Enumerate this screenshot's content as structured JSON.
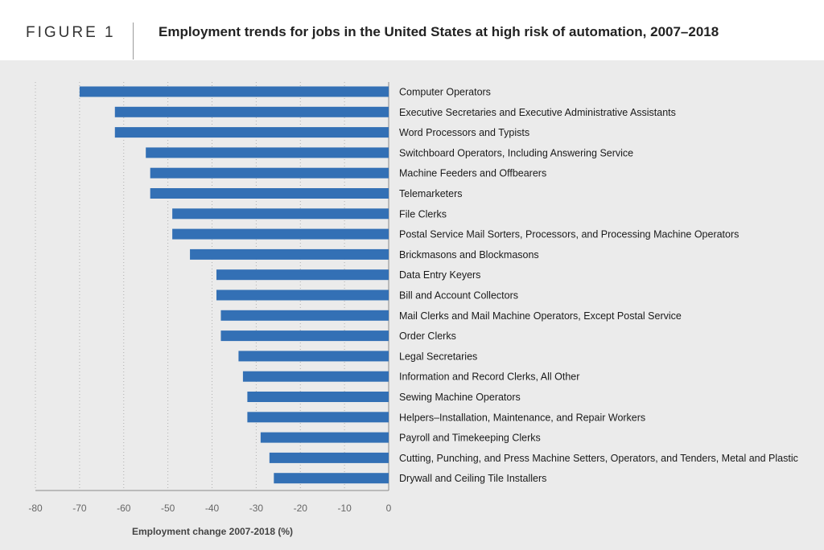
{
  "figure_label": "FIGURE 1",
  "colors": {
    "bar": "#3370b5",
    "background": "#ebebeb",
    "header_background": "#ffffff"
  },
  "chart_data": {
    "type": "bar",
    "orientation": "horizontal",
    "title": "Employment trends for jobs in the United States at high risk of automation, 2007–2018",
    "xlabel": "Employment change 2007-2018 (%)",
    "ylabel": "",
    "xlim": [
      -80,
      0
    ],
    "x_ticks": [
      "-80",
      "-70",
      "-60",
      "-50",
      "-40",
      "-30",
      "-20",
      "-10",
      "0"
    ],
    "grid": "vertical dotted",
    "legend": "none",
    "categories": [
      "Computer Operators",
      "Executive Secretaries and Executive Administrative Assistants",
      "Word Processors and Typists",
      "Switchboard Operators, Including Answering Service",
      "Machine Feeders and Offbearers",
      "Telemarketers",
      "File Clerks",
      "Postal Service Mail Sorters, Processors, and Processing Machine Operators",
      "Brickmasons and Blockmasons",
      "Data Entry Keyers",
      "Bill and Account Collectors",
      "Mail Clerks and Mail Machine Operators, Except Postal Service",
      "Order Clerks",
      "Legal Secretaries",
      "Information and Record Clerks, All Other",
      "Sewing Machine Operators",
      "Helpers–Installation, Maintenance, and Repair Workers",
      "Payroll and Timekeeping Clerks",
      "Cutting, Punching, and Press Machine Setters, Operators, and Tenders, Metal and Plastic",
      "Drywall and Ceiling Tile Installers"
    ],
    "values": [
      -70,
      -62,
      -62,
      -55,
      -54,
      -54,
      -49,
      -49,
      -45,
      -39,
      -39,
      -38,
      -38,
      -34,
      -33,
      -32,
      -32,
      -29,
      -27,
      -26
    ]
  }
}
